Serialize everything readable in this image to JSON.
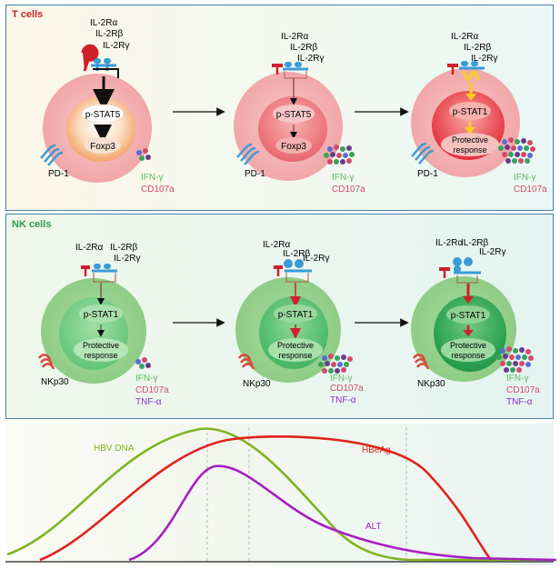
{
  "t_cells": {
    "title": "T cells",
    "receptors": [
      "IL-2Rα",
      "IL-2Rβ",
      "IL-2Rγ"
    ],
    "stages": [
      {
        "signal": "p-STAT5",
        "target": "Foxp3",
        "marker": "PD-1",
        "cytokines": [
          "IFN-γ",
          "CD107a"
        ]
      },
      {
        "signal": "p-STAT5",
        "target": "Foxp3",
        "marker": "PD-1",
        "cytokines": [
          "IFN-γ",
          "CD107a"
        ]
      },
      {
        "signal": "p-STAT1",
        "target": "Protective response",
        "target_lines": [
          "Protective",
          "response"
        ],
        "marker": "PD-1",
        "cytokines": [
          "IFN-γ",
          "CD107a"
        ]
      }
    ]
  },
  "nk_cells": {
    "title": "NK cells",
    "receptors": [
      "IL-2Rα",
      "IL-2Rβ",
      "IL-2Rγ"
    ],
    "stages": [
      {
        "signal": "p-STAT1",
        "target_lines": [
          "Protective",
          "response"
        ],
        "marker": "NKp30",
        "cytokines": [
          "IFN-γ",
          "CD107a",
          "TNF-α"
        ]
      },
      {
        "signal": "p-STAT1",
        "target_lines": [
          "Protective",
          "response"
        ],
        "marker": "NKp30",
        "cytokines": [
          "IFN-γ",
          "CD107a",
          "TNF-α"
        ]
      },
      {
        "signal": "p-STAT1",
        "target_lines": [
          "Protective",
          "response"
        ],
        "marker": "NKp30",
        "cytokines": [
          "IFN-γ",
          "CD107a",
          "TNF-α"
        ]
      }
    ]
  },
  "curves": {
    "series": [
      {
        "name": "HBV DNA",
        "color": "#7fb321"
      },
      {
        "name": "HBeAg",
        "color": "#e0231a"
      },
      {
        "name": "ALT",
        "color": "#a61fbf"
      }
    ]
  },
  "colors": {
    "t_title": "#c8282a",
    "nk_title": "#2f9a4c",
    "ifn": "#5cb85c",
    "cd107a": "#d24a6a",
    "tnf": "#8a2fc2",
    "receptor_alpha": "#d0202a",
    "receptor_beta_gamma": "#3a9bd6"
  }
}
